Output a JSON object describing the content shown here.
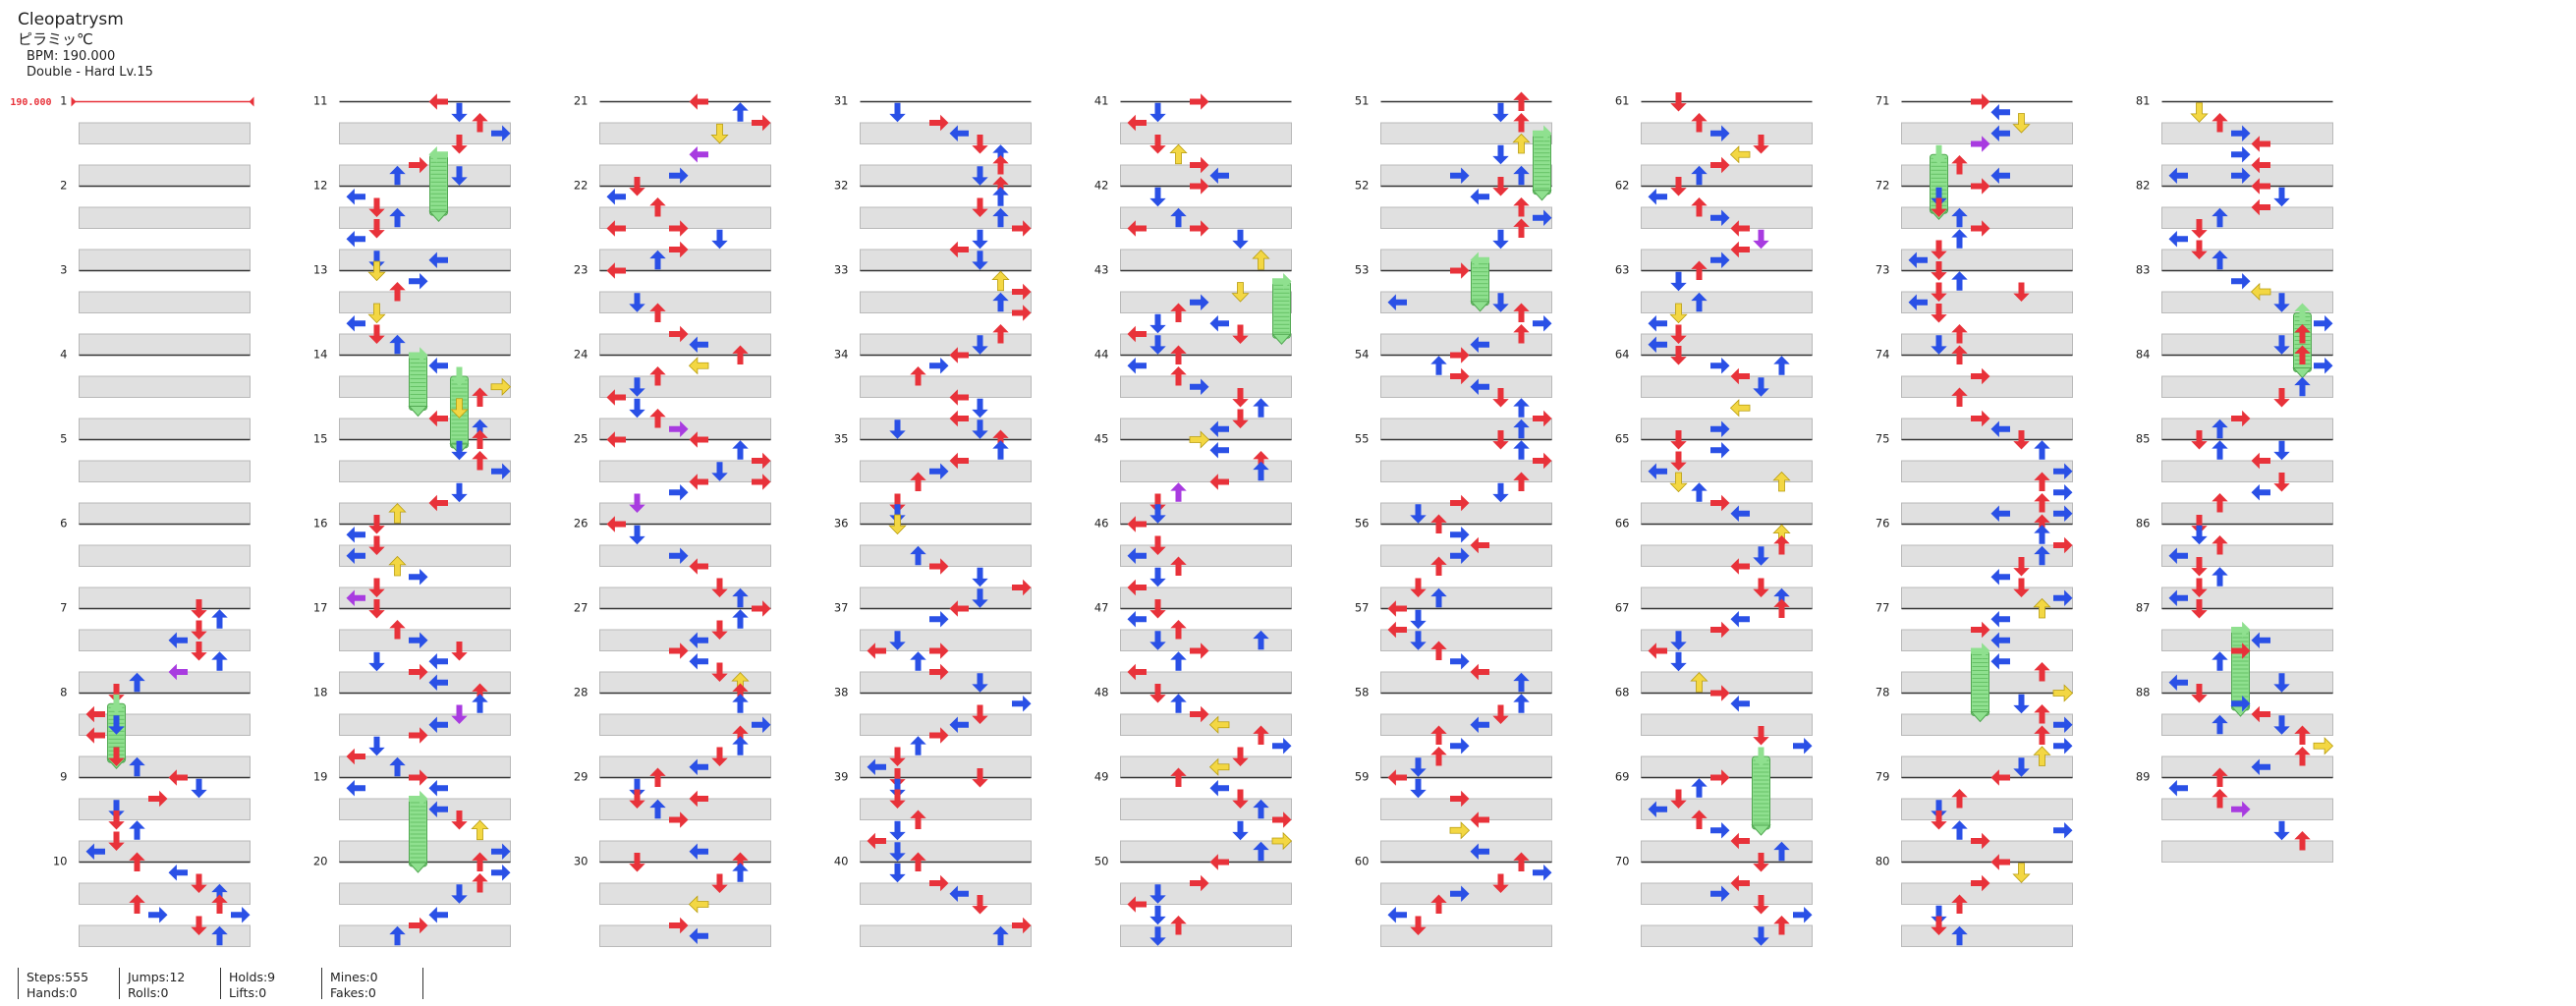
{
  "song": {
    "title": "Cleopatrysm",
    "artist": "ピラミッ℃",
    "bpm_text": "BPM: 190.000",
    "difficulty_text": "Double - Hard Lv.15"
  },
  "bpm_marker": "190.000",
  "chart_data": {
    "type": "step-chart",
    "columns": 4,
    "measures": 89,
    "rows_per_measure": 8,
    "measure_labels": [
      "1",
      "2",
      "3",
      "4",
      "5",
      "6",
      "7",
      "8",
      "9",
      "10",
      "11",
      "12",
      "13",
      "14",
      "15",
      "16",
      "17",
      "18",
      "19",
      "20",
      "21",
      "22",
      "23",
      "24",
      "25",
      "26",
      "27",
      "28",
      "29",
      "30",
      "31",
      "32",
      "33",
      "34",
      "35",
      "36",
      "37",
      "38",
      "39",
      "40",
      "41",
      "42",
      "43",
      "44",
      "45",
      "46",
      "47",
      "48",
      "49",
      "50",
      "51",
      "52",
      "53",
      "54",
      "55",
      "56",
      "57",
      "58",
      "59",
      "60",
      "61",
      "62",
      "63",
      "64",
      "65",
      "66",
      "67",
      "68",
      "69",
      "70",
      "71",
      "72",
      "73",
      "74",
      "75",
      "76",
      "77",
      "78",
      "79",
      "80",
      "81",
      "82",
      "83",
      "84",
      "85",
      "86",
      "87",
      "88",
      "89"
    ],
    "colors": {
      "red": "#e8323a",
      "blue": "#2a50e6",
      "yellow": "#f3d743",
      "purple": "#a83be0",
      "green": "#8fe08f"
    }
  },
  "stats": [
    [
      "Steps:555",
      "Hands:0"
    ],
    [
      "Jumps:12",
      "Rolls:0"
    ],
    [
      "Holds:9",
      "Lifts:0"
    ],
    [
      "Mines:0",
      "Fakes:0"
    ]
  ]
}
